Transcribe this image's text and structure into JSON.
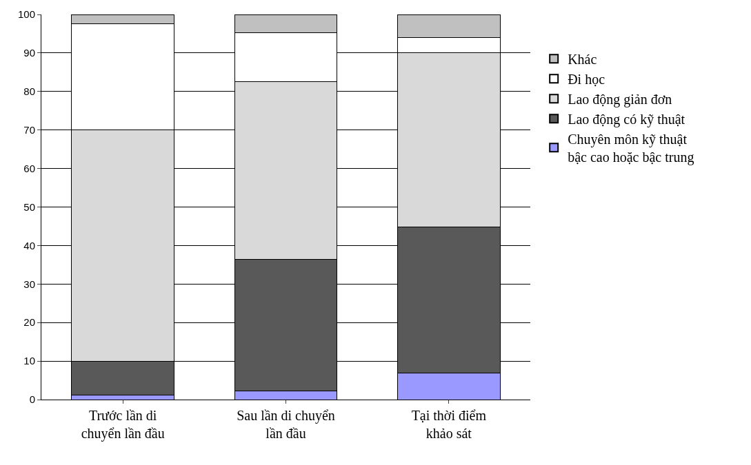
{
  "chart_data": {
    "type": "bar",
    "stacked": true,
    "categories": [
      "Trước lần di chuyển lần đầu",
      "Sau lần di chuyển lần đầu",
      "Tại thời điểm khảo sát"
    ],
    "series": [
      {
        "name": "Chuyên môn kỹ thuật bậc cao hoặc bậc trung",
        "color": "#9999ff",
        "values": [
          1.2,
          2.3,
          6.9
        ]
      },
      {
        "name": "Lao động có kỹ thuật",
        "color": "#595959",
        "values": [
          8.8,
          34.1,
          38.0
        ]
      },
      {
        "name": "Lao động giản đơn",
        "color": "#d9d9d9",
        "values": [
          60.0,
          46.2,
          45.1
        ]
      },
      {
        "name": "Đi học",
        "color": "#ffffff",
        "values": [
          27.5,
          12.6,
          4.0
        ]
      },
      {
        "name": "Khác",
        "color": "#c0c0c0",
        "values": [
          2.5,
          4.8,
          6.0
        ]
      }
    ],
    "ylim": [
      0,
      100
    ],
    "yticks": [
      0,
      10,
      20,
      30,
      40,
      50,
      60,
      70,
      80,
      90,
      100
    ],
    "grid": "y",
    "legend": "right"
  }
}
